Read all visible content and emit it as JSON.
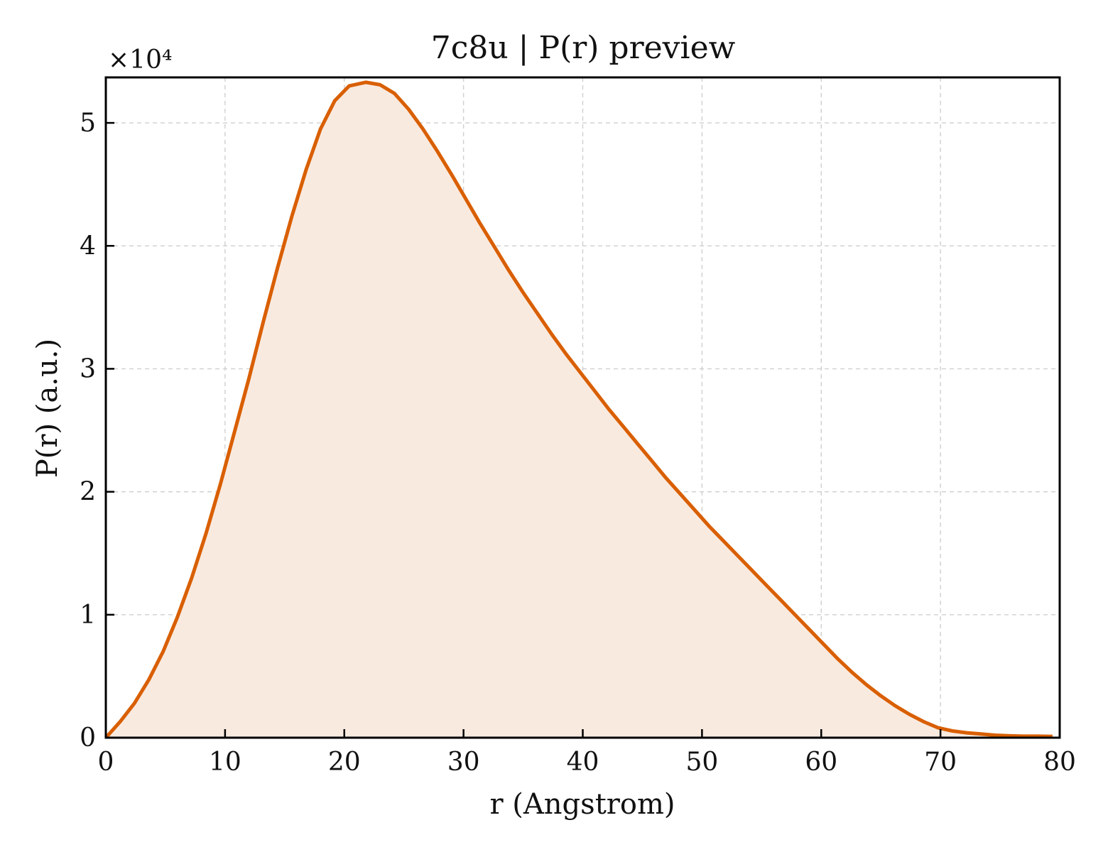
{
  "chart_data": {
    "type": "area",
    "title": "7c8u | P(r) preview",
    "xlabel": "r (Angstrom)",
    "ylabel": "P(r) (a.u.)",
    "y_scale_label": "×10⁴",
    "xlim": [
      0,
      80
    ],
    "ylim": [
      0,
      5.37
    ],
    "x_ticks": [
      "0",
      "10",
      "20",
      "30",
      "40",
      "50",
      "60",
      "70",
      "80"
    ],
    "y_ticks": [
      "0",
      "1",
      "2",
      "3",
      "4",
      "5"
    ],
    "grid": true,
    "colors": {
      "line": "#d95f02",
      "fill": "#f9eae0"
    },
    "series": [
      {
        "x": [
          0,
          1.2,
          2.4,
          3.6,
          4.8,
          6.0,
          7.2,
          8.4,
          9.6,
          10.8,
          12.0,
          13.2,
          14.4,
          15.6,
          16.8,
          18.0,
          19.2,
          20.4,
          21.8,
          23.0,
          24.2,
          25.4,
          26.6,
          27.8,
          29.0,
          30.2,
          31.4,
          32.6,
          33.8,
          35.0,
          36.2,
          37.4,
          38.6,
          39.8,
          41.0,
          42.2,
          43.4,
          44.6,
          45.8,
          47.0,
          48.2,
          49.4,
          50.6,
          51.8,
          53.0,
          54.2,
          55.4,
          56.6,
          57.8,
          59.0,
          60.2,
          61.4,
          62.6,
          63.8,
          65.0,
          66.2,
          67.4,
          68.6,
          69.8,
          71.0,
          72.2,
          73.4,
          74.6,
          75.8,
          77.0,
          78.2,
          79.4
        ],
        "values": [
          0.0,
          0.13,
          0.28,
          0.47,
          0.7,
          0.98,
          1.3,
          1.66,
          2.06,
          2.49,
          2.92,
          3.38,
          3.82,
          4.24,
          4.62,
          4.95,
          5.18,
          5.3,
          5.33,
          5.31,
          5.24,
          5.11,
          4.95,
          4.77,
          4.58,
          4.38,
          4.18,
          3.99,
          3.8,
          3.62,
          3.45,
          3.28,
          3.12,
          2.97,
          2.82,
          2.67,
          2.53,
          2.39,
          2.25,
          2.11,
          1.98,
          1.85,
          1.72,
          1.6,
          1.48,
          1.36,
          1.24,
          1.12,
          1.0,
          0.88,
          0.76,
          0.64,
          0.53,
          0.43,
          0.34,
          0.26,
          0.19,
          0.13,
          0.08,
          0.055,
          0.04,
          0.03,
          0.02,
          0.015,
          0.012,
          0.012,
          0.01
        ]
      }
    ]
  }
}
